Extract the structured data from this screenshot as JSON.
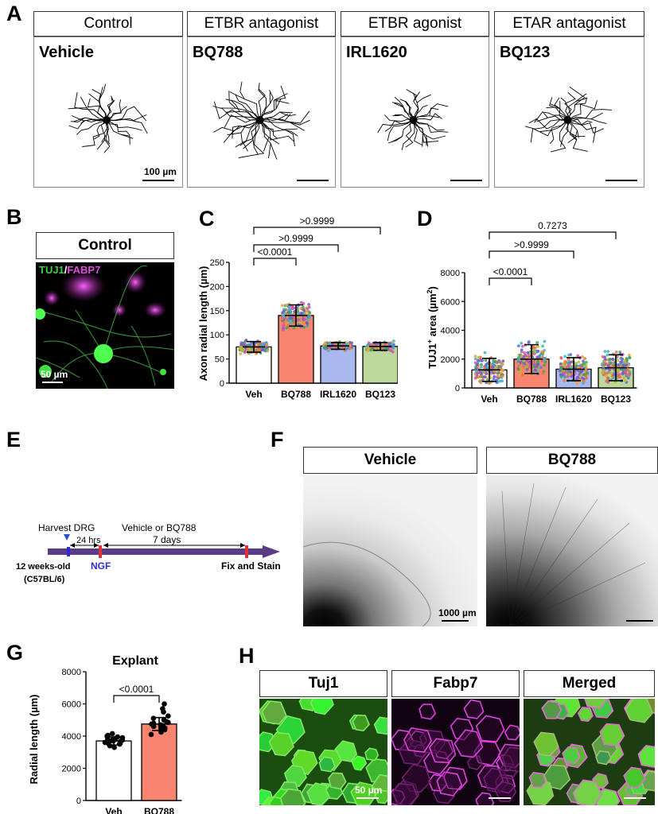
{
  "panel_a": {
    "letter": "A",
    "groups": [
      {
        "header": "Control",
        "treatment": "Vehicle"
      },
      {
        "header": "ETBR antagonist",
        "treatment": "BQ788"
      },
      {
        "header": "ETBR agonist",
        "treatment": "IRL1620"
      },
      {
        "header": "ETAR antagonist",
        "treatment": "BQ123"
      }
    ],
    "scale_label": "100 µm"
  },
  "panel_b": {
    "letter": "B",
    "header": "Control",
    "stain_a": "TUJ1",
    "stain_sep": "/",
    "stain_b": "FABP7",
    "scale_label": "50 µm"
  },
  "panel_e": {
    "letter": "E",
    "harvest": "Harvest DRG",
    "hrs": "24 hrs",
    "treatment": "Vehicle or BQ788",
    "days": "7 days",
    "age": "12 weeks-old",
    "strain": "(C57BL/6)",
    "ngf": "NGF",
    "fix": "Fix and Stain"
  },
  "panel_f": {
    "letter": "F",
    "headers": [
      "Vehicle",
      "BQ788"
    ],
    "scale_label": "1000 µm"
  },
  "panel_h": {
    "letter": "H",
    "headers": [
      "Tuj1",
      "Fabp7",
      "Merged"
    ],
    "scale_label": "50 µm"
  },
  "chart_data": [
    {
      "panel": "C",
      "type": "bar",
      "ylabel": "Axon radial length (µm)",
      "categories": [
        "Veh",
        "BQ788",
        "IRL1620",
        "BQ123"
      ],
      "values": [
        75,
        140,
        77,
        76
      ],
      "error": [
        11,
        22,
        7,
        8
      ],
      "colors": [
        "#ffffff",
        "#f8836f",
        "#a9b8ee",
        "#bcd89a"
      ],
      "ylim": [
        0,
        250
      ],
      "yticks": [
        0,
        50,
        100,
        150,
        200,
        250
      ],
      "comparisons": [
        {
          "from": 0,
          "to": 1,
          "label": "<0.0001"
        },
        {
          "from": 0,
          "to": 2,
          "label": ">0.9999"
        },
        {
          "from": 0,
          "to": 3,
          "label": ">0.9999"
        }
      ]
    },
    {
      "panel": "D",
      "type": "bar",
      "ylabel_main": "TUJ1",
      "ylabel_sup": "+",
      "ylabel_mid": " area (µm",
      "ylabel_sup2": "2",
      "ylabel_end": ")",
      "categories": [
        "Veh",
        "BQ788",
        "IRL1620",
        "BQ123"
      ],
      "values": [
        1250,
        2000,
        1300,
        1400
      ],
      "error": [
        800,
        1000,
        800,
        900
      ],
      "colors": [
        "#ffffff",
        "#f8836f",
        "#a9b8ee",
        "#bcd89a"
      ],
      "ylim": [
        0,
        8000
      ],
      "yticks": [
        0,
        2000,
        4000,
        6000,
        8000
      ],
      "comparisons": [
        {
          "from": 0,
          "to": 1,
          "label": "<0.0001"
        },
        {
          "from": 0,
          "to": 2,
          "label": ">0.9999"
        },
        {
          "from": 0,
          "to": 3,
          "label": "0.7273"
        }
      ]
    },
    {
      "panel": "G",
      "type": "bar",
      "title": "Explant",
      "ylabel": "Radial length (µm)",
      "categories": [
        "Veh",
        "BQ788"
      ],
      "values": [
        3700,
        4750
      ],
      "error": [
        250,
        400
      ],
      "colors": [
        "#ffffff",
        "#f8836f"
      ],
      "ylim": [
        0,
        8000
      ],
      "yticks": [
        0,
        2000,
        4000,
        6000,
        8000
      ],
      "points": [
        [
          3300,
          3400,
          3500,
          3550,
          3600,
          3600,
          3650,
          3700,
          3700,
          3750,
          3800,
          3800,
          3850,
          3900,
          3950,
          4000,
          4050,
          4150
        ],
        [
          4100,
          4250,
          4400,
          4500,
          4550,
          4600,
          4650,
          4700,
          4750,
          4800,
          4850,
          4900,
          5000,
          5100,
          5250,
          5500,
          5700,
          6000
        ]
      ],
      "comparisons": [
        {
          "from": 0,
          "to": 1,
          "label": "<0.0001"
        }
      ]
    }
  ]
}
